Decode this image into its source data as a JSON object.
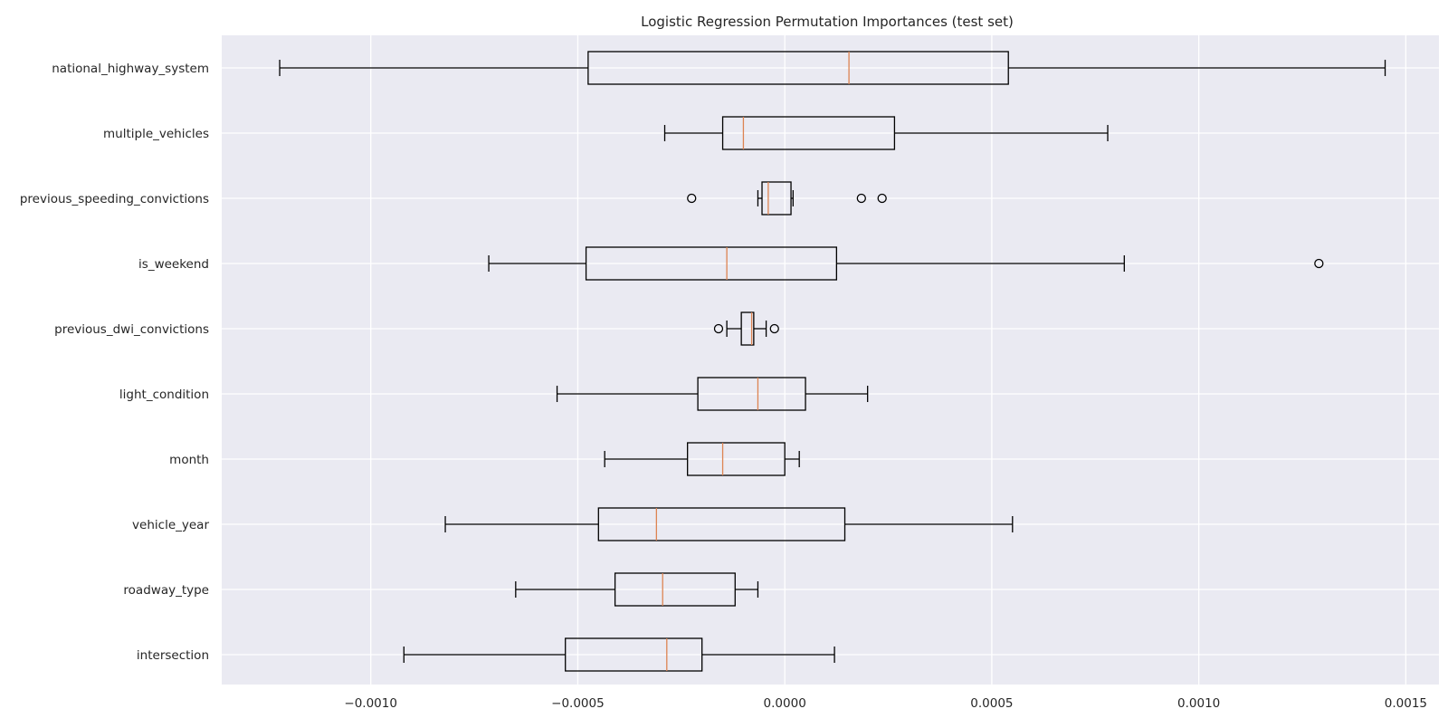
{
  "chart_data": {
    "type": "boxplot",
    "orientation": "horizontal",
    "title": "Logistic Regression Permutation Importances (test set)",
    "xlabel": "",
    "ylabel": "",
    "xlim": [
      -0.00136,
      0.00158
    ],
    "x_ticks": [
      -0.001,
      -0.0005,
      0.0,
      0.0005,
      0.001,
      0.0015
    ],
    "x_tick_labels": [
      "−0.0010",
      "−0.0005",
      "0.0000",
      "0.0005",
      "0.0010",
      "0.0015"
    ],
    "grid": true,
    "categories": [
      "national_highway_system",
      "multiple_vehicles",
      "previous_speeding_convictions",
      "is_weekend",
      "previous_dwi_convictions",
      "light_condition",
      "month",
      "vehicle_year",
      "roadway_type",
      "intersection"
    ],
    "boxes": [
      {
        "name": "national_highway_system",
        "whisker_low": -0.00122,
        "q1": -0.000475,
        "median": 0.000155,
        "q3": 0.00054,
        "whisker_high": 0.00145,
        "outliers": []
      },
      {
        "name": "multiple_vehicles",
        "whisker_low": -0.00029,
        "q1": -0.00015,
        "median": -0.0001,
        "q3": 0.000265,
        "whisker_high": 0.00078,
        "outliers": []
      },
      {
        "name": "previous_speeding_convictions",
        "whisker_low": -6.5e-05,
        "q1": -5.5e-05,
        "median": -4e-05,
        "q3": 1.5e-05,
        "whisker_high": 2e-05,
        "outliers": [
          -0.000225,
          0.000185,
          0.000235
        ]
      },
      {
        "name": "is_weekend",
        "whisker_low": -0.000715,
        "q1": -0.00048,
        "median": -0.00014,
        "q3": 0.000125,
        "whisker_high": 0.00082,
        "outliers": [
          0.00129
        ]
      },
      {
        "name": "previous_dwi_convictions",
        "whisker_low": -0.00014,
        "q1": -0.000105,
        "median": -8e-05,
        "q3": -7.5e-05,
        "whisker_high": -4.5e-05,
        "outliers": [
          -0.00016,
          -2.5e-05
        ]
      },
      {
        "name": "light_condition",
        "whisker_low": -0.00055,
        "q1": -0.00021,
        "median": -6.5e-05,
        "q3": 5e-05,
        "whisker_high": 0.0002,
        "outliers": []
      },
      {
        "name": "month",
        "whisker_low": -0.000435,
        "q1": -0.000235,
        "median": -0.00015,
        "q3": 0.0,
        "whisker_high": 3.5e-05,
        "outliers": []
      },
      {
        "name": "vehicle_year",
        "whisker_low": -0.00082,
        "q1": -0.00045,
        "median": -0.00031,
        "q3": 0.000145,
        "whisker_high": 0.00055,
        "outliers": []
      },
      {
        "name": "roadway_type",
        "whisker_low": -0.00065,
        "q1": -0.00041,
        "median": -0.000295,
        "q3": -0.00012,
        "whisker_high": -6.5e-05,
        "outliers": []
      },
      {
        "name": "intersection",
        "whisker_low": -0.00092,
        "q1": -0.00053,
        "median": -0.000285,
        "q3": -0.0002,
        "whisker_high": 0.00012,
        "outliers": []
      }
    ],
    "colors": {
      "plot_background": "#eaeaf2",
      "grid": "#ffffff",
      "box": "#000000",
      "median": "#dd8452",
      "text": "#262626"
    }
  }
}
